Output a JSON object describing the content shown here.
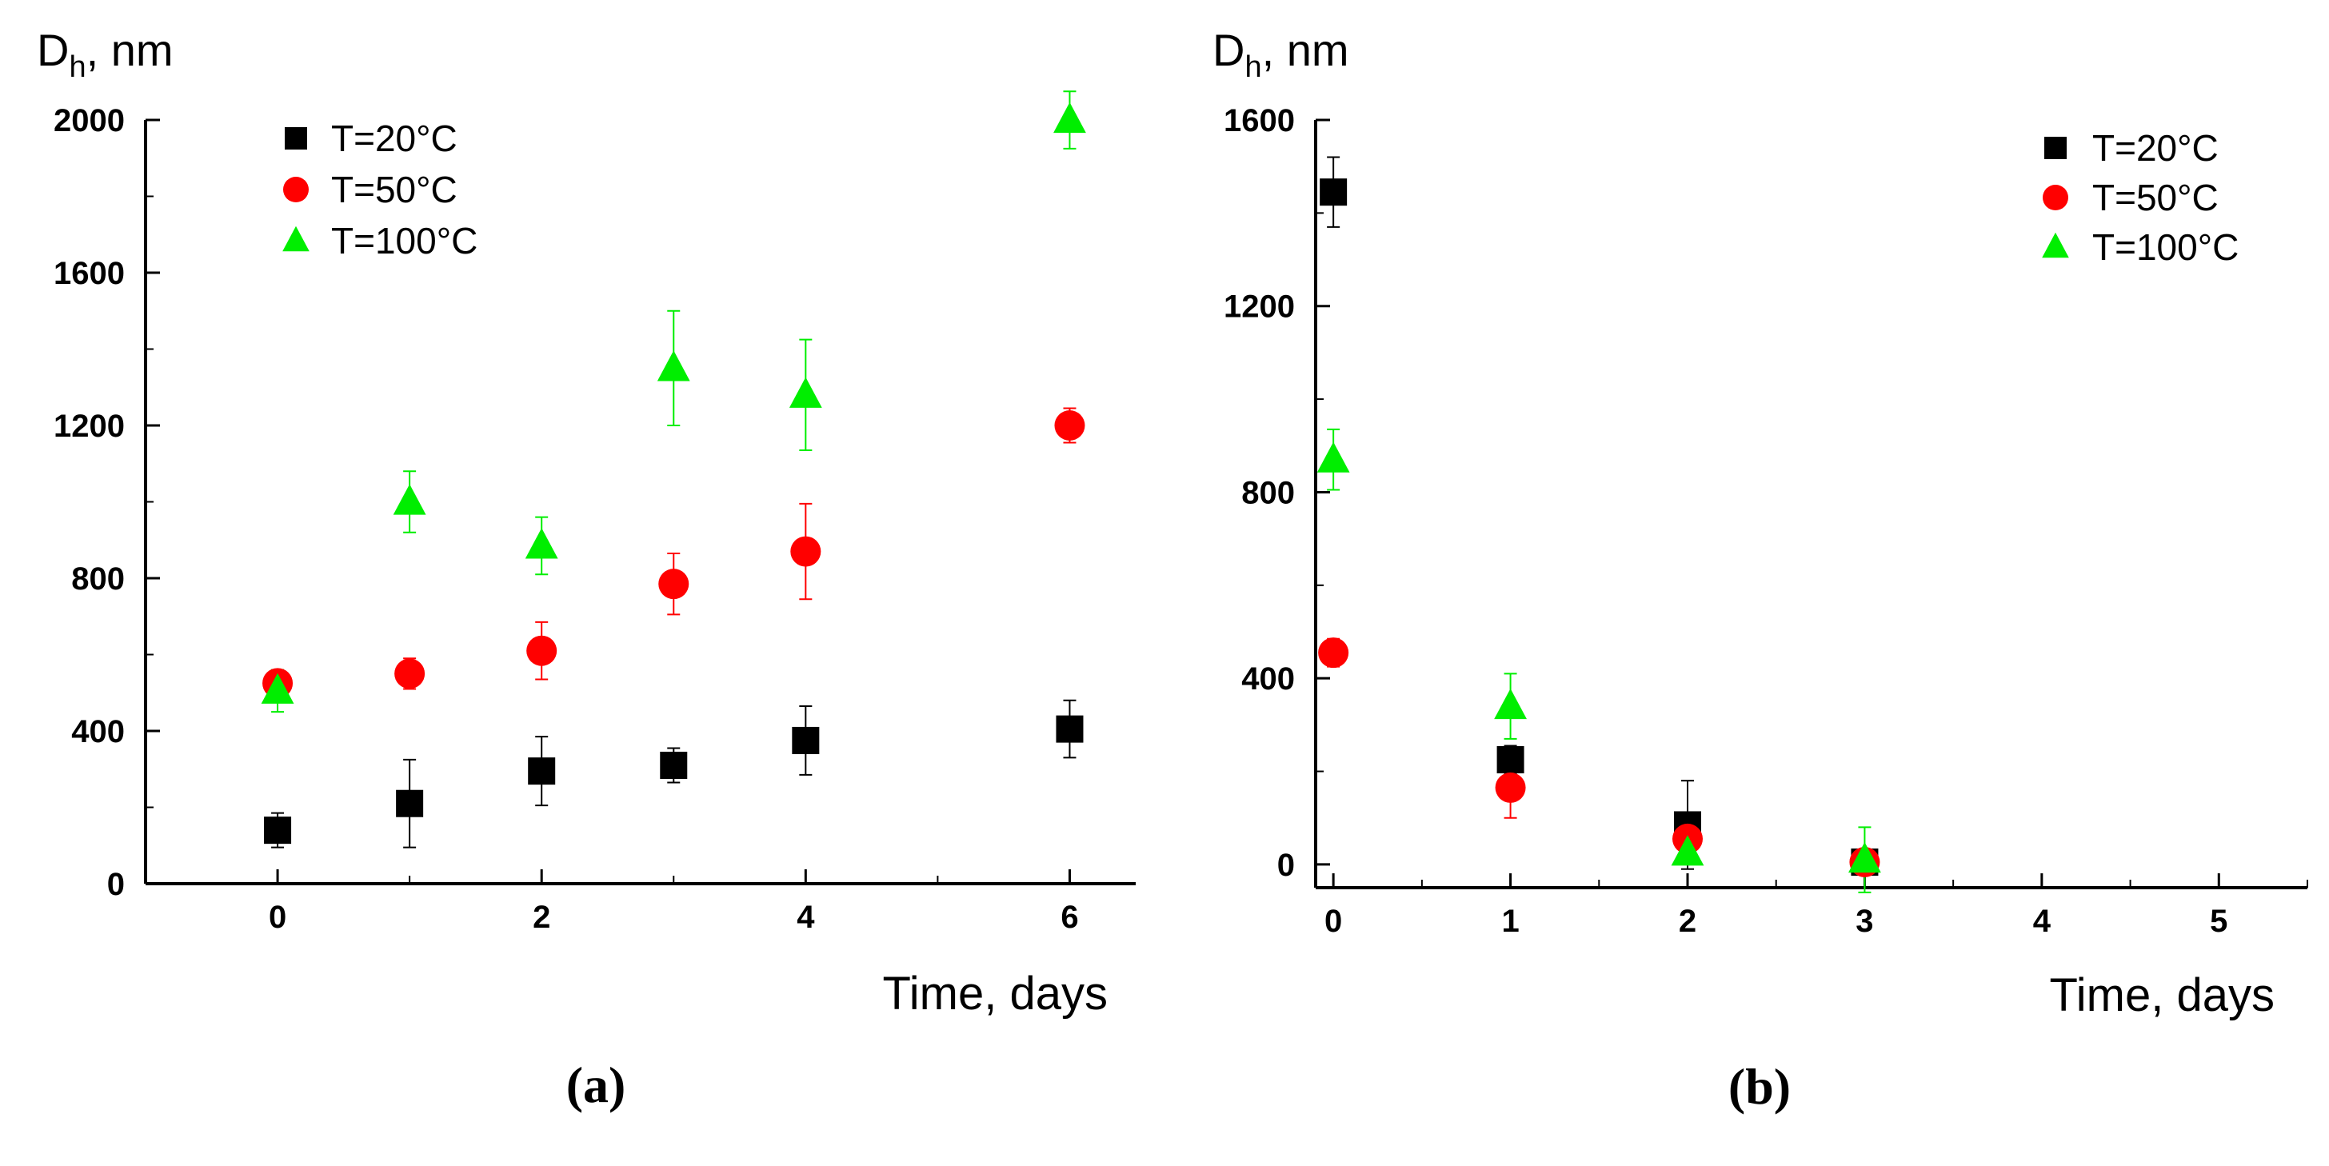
{
  "colors": {
    "series_20": "#000000",
    "series_50": "#ff0000",
    "series_100": "#00ee00"
  },
  "chart_data": [
    {
      "type": "scatter",
      "panel_label": "(a)",
      "ylabel_main": "D",
      "ylabel_sub": "h",
      "ylabel_unit": ", nm",
      "xlabel": "Time, days",
      "xlim": [
        -1,
        6.5
      ],
      "ylim": [
        0,
        2000
      ],
      "xticks": [
        0,
        2,
        4,
        6
      ],
      "yticks": [
        0,
        400,
        800,
        1200,
        1600,
        2000
      ],
      "legend_position": "top-left",
      "series": [
        {
          "name": "T=20°C",
          "marker": "square",
          "color": "#000000",
          "x": [
            0,
            1,
            2,
            3,
            4,
            6
          ],
          "y": [
            140,
            210,
            295,
            310,
            375,
            405
          ],
          "err": [
            45,
            115,
            90,
            45,
            90,
            75
          ]
        },
        {
          "name": "T=50°C",
          "marker": "circle",
          "color": "#ff0000",
          "x": [
            0,
            1,
            2,
            3,
            4,
            6
          ],
          "y": [
            525,
            550,
            610,
            785,
            870,
            1200
          ],
          "err": [
            30,
            40,
            75,
            80,
            125,
            45
          ]
        },
        {
          "name": "T=100°C",
          "marker": "triangle",
          "color": "#00ee00",
          "x": [
            0,
            1,
            2,
            3,
            4,
            6
          ],
          "y": [
            505,
            1000,
            885,
            1350,
            1280,
            2000
          ],
          "err": [
            55,
            80,
            75,
            150,
            145,
            75
          ]
        }
      ]
    },
    {
      "type": "scatter",
      "panel_label": "(b)",
      "ylabel_main": "D",
      "ylabel_sub": "h",
      "ylabel_unit": ", nm",
      "xlabel": "Time, days",
      "xlim": [
        -0.1,
        5.5
      ],
      "ylim": [
        -50,
        1600
      ],
      "xticks": [
        0,
        1,
        2,
        3,
        4,
        5
      ],
      "yticks": [
        0,
        400,
        800,
        1200,
        1600
      ],
      "legend_position": "top-right",
      "series": [
        {
          "name": "T=20°C",
          "marker": "square",
          "color": "#000000",
          "x": [
            0,
            1,
            2,
            3
          ],
          "y": [
            1445,
            225,
            85,
            5
          ],
          "err": [
            75,
            30,
            95,
            10
          ]
        },
        {
          "name": "T=50°C",
          "marker": "circle",
          "color": "#ff0000",
          "x": [
            0,
            1,
            2,
            3
          ],
          "y": [
            455,
            165,
            55,
            5
          ],
          "err": [
            30,
            65,
            25,
            10
          ]
        },
        {
          "name": "T=100°C",
          "marker": "triangle",
          "color": "#00ee00",
          "x": [
            0,
            1,
            2,
            3
          ],
          "y": [
            870,
            340,
            25,
            10
          ],
          "err": [
            65,
            70,
            20,
            70
          ]
        }
      ]
    }
  ]
}
